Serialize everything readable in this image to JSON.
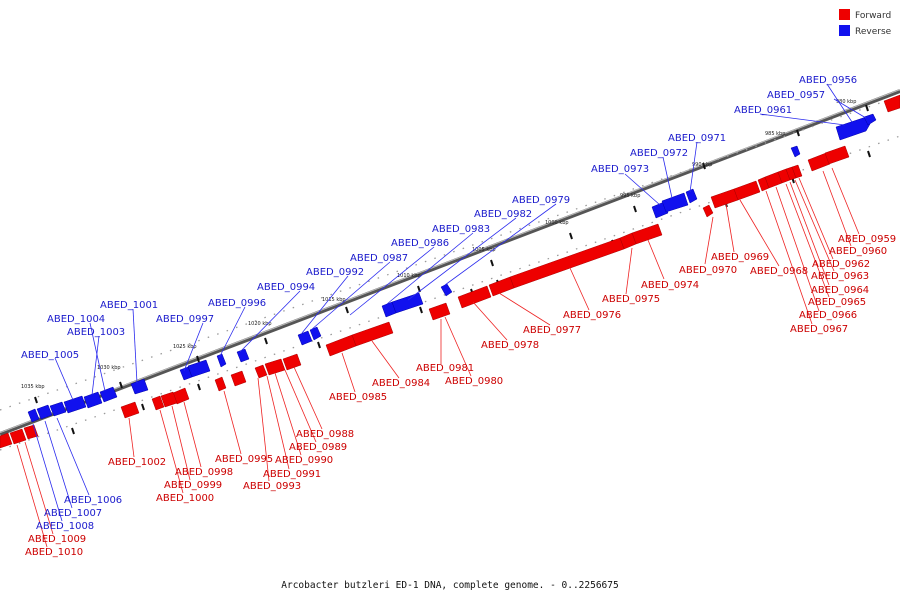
{
  "caption": "Arcobacter butzleri ED-1 DNA, complete genome. - 0..2256675",
  "legend": [
    {
      "label": "Forward",
      "color": "#ee0000"
    },
    {
      "label": "Reverse",
      "color": "#1111ee"
    }
  ],
  "colors": {
    "forward": "#ee0000",
    "forward_shade": "#b80000",
    "reverse": "#1111ee",
    "reverse_shade": "#0000a8",
    "axis": "#777777",
    "forward_text": "#cc0000",
    "reverse_text": "#1a1acc"
  },
  "ticks": [
    "980 kbp",
    "985 kbp",
    "990 kbp",
    "995 kbp",
    "1000 kbp",
    "1005 kbp",
    "1010 kbp",
    "1015 kbp",
    "1020 kbp",
    "1025 kbp",
    "1030 kbp",
    "1035 kbp"
  ],
  "genes": {
    "reverse": [
      "ABED_0956",
      "ABED_0957",
      "ABED_0961",
      "ABED_0971",
      "ABED_0972",
      "ABED_0973",
      "ABED_0979",
      "ABED_0982",
      "ABED_0983",
      "ABED_0986",
      "ABED_0987",
      "ABED_0992",
      "ABED_0994",
      "ABED_0996",
      "ABED_0997",
      "ABED_1001",
      "ABED_1004",
      "ABED_1003",
      "ABED_1005",
      "ABED_1006",
      "ABED_1007",
      "ABED_1008"
    ],
    "forward": [
      "ABED_0959",
      "ABED_0960",
      "ABED_0962",
      "ABED_0963",
      "ABED_0964",
      "ABED_0965",
      "ABED_0966",
      "ABED_0967",
      "ABED_0968",
      "ABED_0969",
      "ABED_0970",
      "ABED_0974",
      "ABED_0975",
      "ABED_0976",
      "ABED_0977",
      "ABED_0978",
      "ABED_0980",
      "ABED_0981",
      "ABED_0984",
      "ABED_0985",
      "ABED_0988",
      "ABED_0989",
      "ABED_0990",
      "ABED_0991",
      "ABED_0993",
      "ABED_0995",
      "ABED_0998",
      "ABED_0999",
      "ABED_1000",
      "ABED_1002",
      "ABED_1009",
      "ABED_1010"
    ]
  }
}
